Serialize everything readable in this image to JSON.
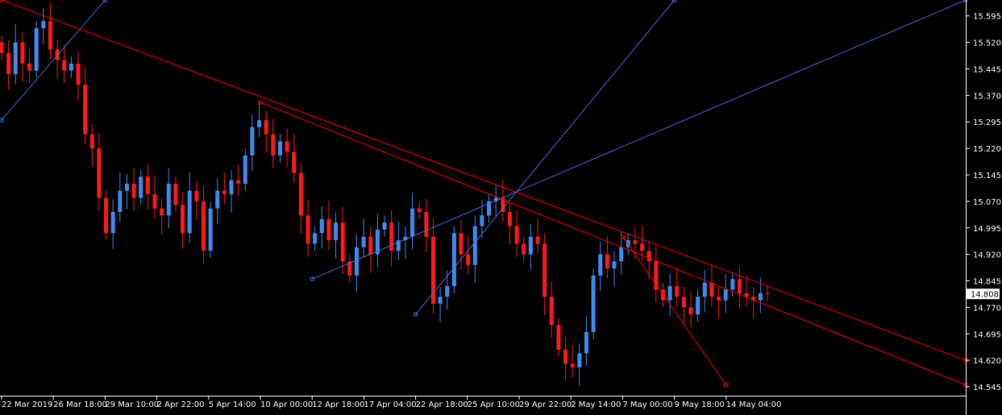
{
  "chart_data": {
    "type": "candlestick",
    "title": "",
    "xlabel": "",
    "ylabel": "",
    "ylim": [
      14.52,
      15.64
    ],
    "y_ticks": [
      "15.595",
      "15.520",
      "15.445",
      "15.370",
      "15.295",
      "15.220",
      "15.145",
      "15.070",
      "14.995",
      "14.920",
      "14.845",
      "14.770",
      "14.695",
      "14.620",
      "14.545"
    ],
    "x_ticks": [
      "22 Mar 2019",
      "26 Mar 18:00",
      "29 Mar 10:00",
      "2 Apr 22:00",
      "5 Apr 14:00",
      "10 Apr 00:00",
      "12 Apr 18:00",
      "17 Apr 04:00",
      "22 Apr 18:00",
      "25 Apr 10:00",
      "29 Apr 22:00",
      "2 May 14:00",
      "7 May 00:00",
      "9 May 18:00",
      "14 May 04:00"
    ],
    "current_price": "14.808",
    "close_series": [
      15.49,
      15.43,
      15.52,
      15.46,
      15.44,
      15.56,
      15.58,
      15.5,
      15.47,
      15.44,
      15.46,
      15.4,
      15.26,
      15.22,
      15.08,
      14.98,
      15.04,
      15.1,
      15.12,
      15.08,
      15.14,
      15.09,
      15.05,
      15.03,
      15.12,
      15.06,
      14.98,
      15.1,
      15.07,
      14.93,
      15.05,
      15.1,
      15.09,
      15.13,
      15.12,
      15.2,
      15.28,
      15.3,
      15.26,
      15.2,
      15.24,
      15.21,
      15.15,
      15.03,
      14.95,
      14.98,
      15.02,
      14.96,
      15.01,
      14.9,
      14.86,
      14.94,
      14.97,
      14.92,
      14.99,
      15.01,
      14.93,
      14.96,
      14.97,
      15.05,
      15.04,
      14.97,
      14.78,
      14.8,
      14.83,
      14.98,
      14.92,
      14.89,
      15,
      15.03,
      15.07,
      15.08,
      15.04,
      15,
      14.95,
      14.92,
      14.97,
      14.95,
      14.8,
      14.72,
      14.65,
      14.61,
      14.6,
      14.64,
      14.7,
      14.86,
      14.92,
      14.88,
      14.9,
      14.94,
      14.96,
      14.95,
      14.93,
      14.9,
      14.82,
      14.79,
      14.83,
      14.8,
      14.77,
      14.75,
      14.8,
      14.84,
      14.8,
      14.79,
      14.82,
      14.85,
      14.81,
      14.8,
      14.79,
      14.81,
      14.808
    ],
    "trendlines": [
      {
        "color": "#ff0000",
        "from": [
          "22 Mar 2019",
          15.64
        ],
        "to": [
          "end",
          14.62
        ]
      },
      {
        "color": "#ff0000",
        "from": [
          "10 Apr 00:00",
          15.35
        ],
        "to": [
          "end",
          14.55
        ]
      },
      {
        "color": "#ff0000",
        "from": [
          "7 May 00:00",
          14.97
        ],
        "to": [
          "14 May 04:00",
          14.55
        ]
      },
      {
        "color": "#4a6bdc",
        "from": [
          "22 Mar 2019",
          15.3
        ],
        "to": [
          "29 Mar 10:00",
          15.64
        ]
      },
      {
        "color": "#4a6bdc",
        "from": [
          "12 Apr 18:00",
          14.85
        ],
        "to": [
          "end",
          15.64
        ]
      },
      {
        "color": "#4a6bdc",
        "from": [
          "22 Apr 18:00",
          14.75
        ],
        "to": [
          "9 May 18:00",
          15.64
        ]
      }
    ]
  }
}
